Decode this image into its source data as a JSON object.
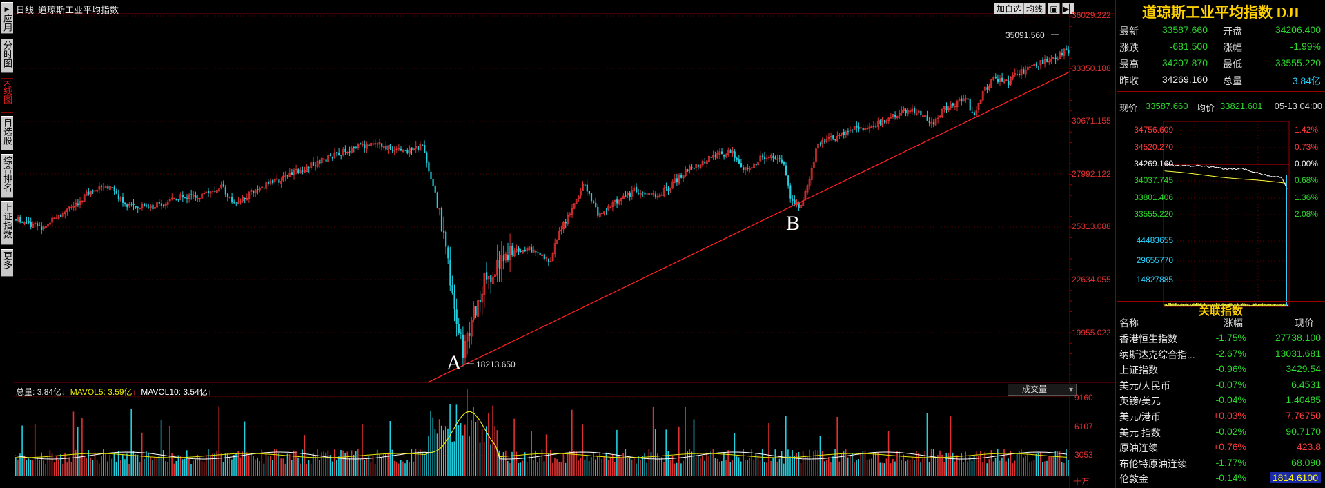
{
  "tabs": [
    {
      "label": "应用",
      "glyph": "▶"
    },
    {
      "label": "分时图",
      "glyph": ""
    },
    {
      "label": "K线图",
      "glyph": ""
    },
    {
      "label": "自选股",
      "glyph": ""
    },
    {
      "label": "综合排名",
      "glyph": ""
    },
    {
      "label": "上证指数",
      "glyph": ""
    },
    {
      "label": "更多",
      "glyph": ""
    }
  ],
  "chart_header": {
    "period": "日线",
    "name": "道琼斯工业平均指数"
  },
  "toolbar": {
    "add_watch": "加自选",
    "ma_line": "均线"
  },
  "price_axis": [
    "36029.222",
    "33350.188",
    "30671.155",
    "27992.122",
    "25313.088",
    "22634.055",
    "19955.022"
  ],
  "annotations": {
    "high_label": "35091.560",
    "low_label": "18213.650",
    "point_a": "A",
    "point_b": "B"
  },
  "volume_header": {
    "total_label": "总量:",
    "total_value": "3.84亿",
    "total_arrow": "↓",
    "mavol5_label": "MAVOL5:",
    "mavol5_value": "3.59亿",
    "mavol5_arrow": "↑",
    "mavol10_label": "MAVOL10:",
    "mavol10_value": "3.54亿",
    "mavol10_arrow": "↑",
    "indicator": "成交量"
  },
  "volume_axis": [
    "9160",
    "6107",
    "3053",
    "十万"
  ],
  "colors": {
    "up": "#e03030",
    "down": "#20d0e0",
    "ma5": "#ffffff",
    "ma10": "#e8e800",
    "trend": "#ff2020",
    "grid": "#600000"
  },
  "quote": {
    "title": "道琼斯工业平均指数 DJI",
    "rows": [
      {
        "l1": "最新",
        "v1": "33587.660",
        "c1": "green",
        "l2": "开盘",
        "v2": "34206.400",
        "c2": "green"
      },
      {
        "l1": "涨跌",
        "v1": "-681.500",
        "c1": "green",
        "l2": "涨幅",
        "v2": "-1.99%",
        "c2": "green"
      },
      {
        "l1": "最高",
        "v1": "34207.870",
        "c1": "green",
        "l2": "最低",
        "v2": "33555.220",
        "c2": "green"
      },
      {
        "l1": "昨收",
        "v1": "34269.160",
        "c1": "white",
        "l2": "总量",
        "v2": "3.84亿",
        "c2": "cyan"
      }
    ]
  },
  "intraday": {
    "now_label": "现价",
    "now_value": "33587.660",
    "avg_label": "均价",
    "avg_value": "33821.601",
    "time": "05-13 04:00",
    "left_axis": [
      {
        "v": "34756.609",
        "c": "red"
      },
      {
        "v": "34520.270",
        "c": "red"
      },
      {
        "v": "34269.160",
        "c": "white"
      },
      {
        "v": "34037.745",
        "c": "green"
      },
      {
        "v": "33801.406",
        "c": "green"
      },
      {
        "v": "33555.220",
        "c": "green"
      }
    ],
    "right_axis": [
      {
        "v": "1.42%",
        "c": "red"
      },
      {
        "v": "0.73%",
        "c": "red"
      },
      {
        "v": "0.00%",
        "c": "white"
      },
      {
        "v": "0.68%",
        "c": "green"
      },
      {
        "v": "1.36%",
        "c": "green"
      },
      {
        "v": "2.08%",
        "c": "green"
      }
    ],
    "vol_axis": [
      "44483655",
      "29655770",
      "14827885"
    ]
  },
  "related": {
    "title": "关联指数",
    "headers": {
      "name": "名称",
      "chg": "涨幅",
      "price": "现价"
    },
    "rows": [
      {
        "name": "香港恒生指数",
        "chg": "-1.75%",
        "price": "27738.100",
        "cc": "green",
        "pc": "green"
      },
      {
        "name": "纳斯达克综合指...",
        "chg": "-2.67%",
        "price": "13031.681",
        "cc": "green",
        "pc": "green"
      },
      {
        "name": "上证指数",
        "chg": "-0.96%",
        "price": "3429.54",
        "cc": "green",
        "pc": "green"
      },
      {
        "name": "美元/人民币",
        "chg": "-0.07%",
        "price": "6.4531",
        "cc": "green",
        "pc": "green"
      },
      {
        "name": "英镑/美元",
        "chg": "-0.04%",
        "price": "1.40485",
        "cc": "green",
        "pc": "green"
      },
      {
        "name": "美元/港币",
        "chg": "+0.03%",
        "price": "7.76750",
        "cc": "red",
        "pc": "red"
      },
      {
        "name": "美元 指数",
        "chg": "-0.02%",
        "price": "90.7170",
        "cc": "green",
        "pc": "green"
      },
      {
        "name": "原油连续",
        "chg": "+0.76%",
        "price": "423.8",
        "cc": "red",
        "pc": "red"
      },
      {
        "name": "布伦特原油连续",
        "chg": "-1.77%",
        "price": "68.090",
        "cc": "green",
        "pc": "green"
      },
      {
        "name": "伦敦金",
        "chg": "-0.14%",
        "price": "1814.6100",
        "cc": "green",
        "pc": "gold"
      }
    ]
  }
}
